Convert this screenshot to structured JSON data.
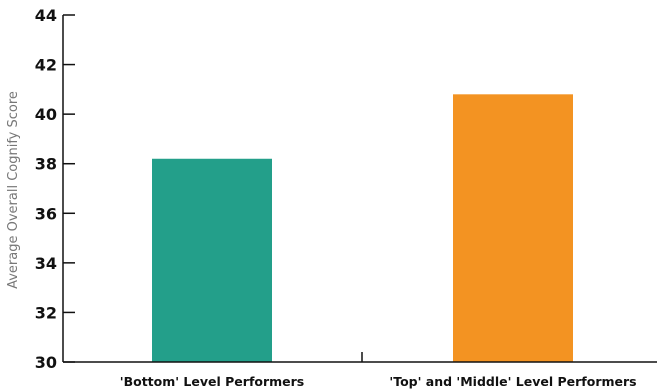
{
  "chart_data": {
    "type": "bar",
    "title": "",
    "xlabel": "",
    "ylabel": "Average Overall Cognify Score",
    "categories": [
      "'Bottom' Level Performers",
      "'Top' and 'Middle' Level Performers"
    ],
    "values": [
      38.2,
      40.8
    ],
    "colors": [
      "#239F8A",
      "#F39322"
    ],
    "ylim": [
      30,
      44
    ],
    "yticks": [
      30,
      32,
      34,
      36,
      38,
      40,
      42,
      44
    ],
    "grid": false,
    "legend": "none"
  }
}
